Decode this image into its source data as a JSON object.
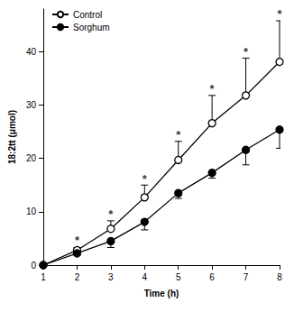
{
  "chart_data": {
    "type": "line",
    "x_label": "Time (h)",
    "y_label": "18:2tt (μmol)",
    "xlim": [
      1,
      8
    ],
    "xticks": [
      1,
      2,
      3,
      4,
      5,
      6,
      7,
      8
    ],
    "ylim": [
      0,
      48
    ],
    "yticks": [
      0,
      10,
      20,
      30,
      40
    ],
    "grid": false,
    "legend": "upper left",
    "series": [
      {
        "name": "Control",
        "color": "#000000",
        "marker": "open",
        "x": [
          1,
          2,
          3,
          4,
          5,
          6,
          7,
          8
        ],
        "values": [
          0,
          2.8,
          6.8,
          12.7,
          19.7,
          26.6,
          31.8,
          38.1
        ],
        "errors": [
          0,
          0.5,
          1.5,
          2.3,
          3.5,
          5.2,
          7.0,
          7.7
        ]
      },
      {
        "name": "Sorghum",
        "color": "#000000",
        "marker": "filled",
        "x": [
          1,
          2,
          3,
          4,
          5,
          6,
          7,
          8
        ],
        "values": [
          0,
          2.2,
          4.5,
          8.1,
          13.5,
          17.3,
          21.6,
          25.4
        ],
        "errors": [
          0,
          0.4,
          1.2,
          1.5,
          1.0,
          1.0,
          2.8,
          3.5
        ]
      }
    ],
    "annotations": [
      {
        "x": 2,
        "y": 4.6,
        "text": "*"
      },
      {
        "x": 3,
        "y": 9.6,
        "text": "*"
      },
      {
        "x": 4,
        "y": 16.2,
        "text": "*"
      },
      {
        "x": 5,
        "y": 24.4,
        "text": "*"
      },
      {
        "x": 6,
        "y": 33.0,
        "text": "*"
      },
      {
        "x": 7,
        "y": 40.0,
        "text": "*"
      },
      {
        "x": 8,
        "y": 47.0,
        "text": "*"
      }
    ]
  }
}
